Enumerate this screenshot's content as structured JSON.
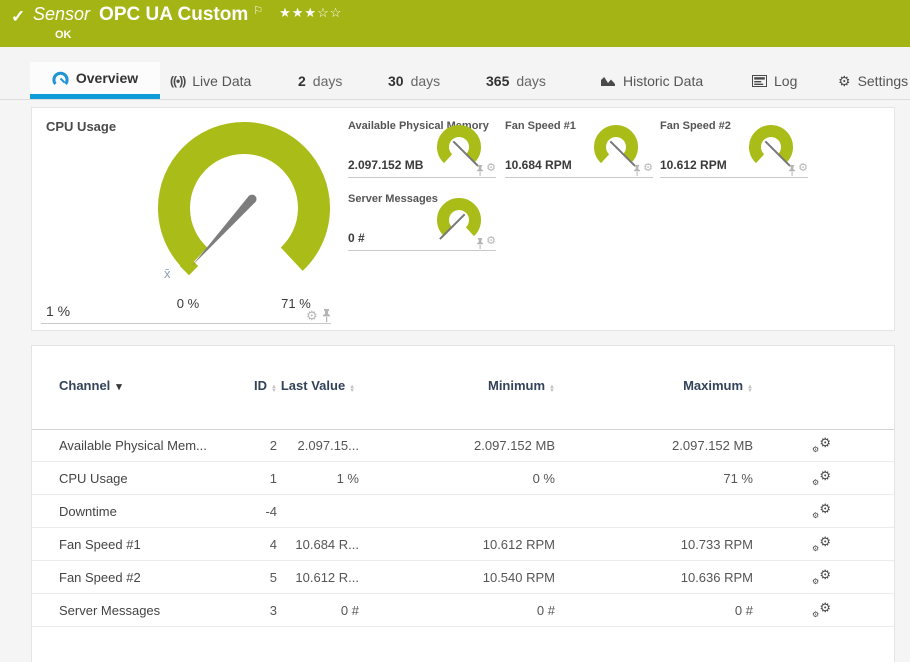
{
  "header": {
    "check": "✓",
    "kind": "Sensor",
    "title": "OPC UA Custom",
    "flag": "⚐",
    "stars": "★★★☆☆",
    "status": "OK"
  },
  "tabs": {
    "overview": {
      "label": "Overview"
    },
    "live_data": {
      "label": "Live Data",
      "glyph": "((•))"
    },
    "days2": {
      "num": "2",
      "unit": "days"
    },
    "days30": {
      "num": "30",
      "unit": "days"
    },
    "days365": {
      "num": "365",
      "unit": "days"
    },
    "historic": {
      "label": "Historic Data"
    },
    "log": {
      "label": "Log"
    },
    "settings": {
      "label": "Settings",
      "glyph": "⚙"
    }
  },
  "gauges": {
    "cpu": {
      "title": "CPU Usage",
      "value": "1 %",
      "min_label": "0 %",
      "max_label": "71 %",
      "avg_marker": "x̄"
    },
    "minis": [
      {
        "title": "Available Physical Memory",
        "value": "2.097.152 MB",
        "needle": "high"
      },
      {
        "title": "Fan Speed #1",
        "value": "10.684 RPM",
        "needle": "high"
      },
      {
        "title": "Fan Speed #2",
        "value": "10.612 RPM",
        "needle": "high"
      },
      {
        "title": "Server Messages",
        "value": "0 #",
        "needle": "low"
      }
    ]
  },
  "table": {
    "columns": {
      "channel": "Channel",
      "id": "ID",
      "last": "Last Value",
      "min": "Minimum",
      "max": "Maximum"
    },
    "rows": [
      {
        "channel": "Available Physical Mem...",
        "id": "2",
        "last": "2.097.15...",
        "min": "2.097.152 MB",
        "max": "2.097.152 MB"
      },
      {
        "channel": "CPU Usage",
        "id": "1",
        "last": "1 %",
        "min": "0 %",
        "max": "71 %"
      },
      {
        "channel": "Downtime",
        "id": "-4",
        "last": "",
        "min": "",
        "max": ""
      },
      {
        "channel": "Fan Speed #1",
        "id": "4",
        "last": "10.684 R...",
        "min": "10.612 RPM",
        "max": "10.733 RPM"
      },
      {
        "channel": "Fan Speed #2",
        "id": "5",
        "last": "10.612 R...",
        "min": "10.540 RPM",
        "max": "10.636 RPM"
      },
      {
        "channel": "Server Messages",
        "id": "3",
        "last": "0 #",
        "min": "0 #",
        "max": "0 #"
      }
    ]
  },
  "colors": {
    "header_green": "#a4b414",
    "gauge_green": "#a9bc17",
    "accent_blue": "#109cd6"
  }
}
